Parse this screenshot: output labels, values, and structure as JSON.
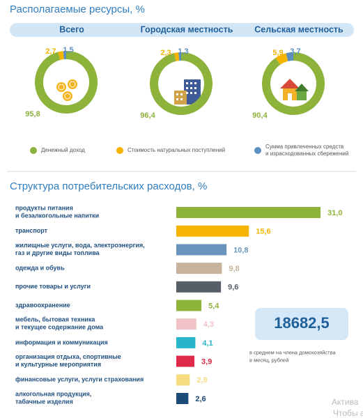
{
  "resources_section": {
    "title": "Располагаемые ресурсы, %",
    "legend": [
      {
        "label": "Денежный доход",
        "color": "#8db33a"
      },
      {
        "label": "Стоимость натуральных поступлений",
        "color": "#f5b400"
      },
      {
        "label": "Сумма привлеченных средств\nи израсходованных сбережений",
        "color": "#5b8fc0"
      }
    ]
  },
  "chart_data": [
    {
      "type": "pie",
      "title": "Всего",
      "values": [
        95.8,
        2.7,
        1.5
      ],
      "value_labels": [
        "95,8",
        "2,7",
        "1,5"
      ],
      "colors": [
        "#8db33a",
        "#f5b400",
        "#5b8fc0"
      ]
    },
    {
      "type": "pie",
      "title": "Городская местность",
      "values": [
        96.4,
        2.3,
        1.3
      ],
      "value_labels": [
        "96,4",
        "2,3",
        "1,3"
      ],
      "colors": [
        "#8db33a",
        "#f5b400",
        "#5b8fc0"
      ]
    },
    {
      "type": "pie",
      "title": "Сельская местность",
      "values": [
        90.4,
        5.9,
        3.7
      ],
      "value_labels": [
        "90,4",
        "5,9",
        "3,7"
      ],
      "colors": [
        "#8db33a",
        "#f5b400",
        "#5b8fc0"
      ]
    },
    {
      "type": "bar",
      "orientation": "horizontal",
      "title": "Структура потребительских расходов, %",
      "categories": [
        "продукты питания\nи безалкогольные напитки",
        "транспорт",
        "жилищные услуги, вода, электроэнергия,\nгаз и другие виды топлива",
        "одежда и обувь",
        "прочие товары и услуги",
        "здравоохранение",
        "мебель,  бытовая техника\nи текущее содержание дома",
        "информация и коммуникация",
        "организация отдыха, спортивные\nи культурные мероприятия",
        "финансовые услуги,  услуги  страхования",
        "алкогольная продукция,\nтабачные изделия"
      ],
      "values": [
        31.0,
        15.6,
        10.8,
        9.8,
        9.6,
        5.4,
        4.3,
        4.1,
        3.9,
        2.9,
        2.6
      ],
      "value_labels": [
        "31,0",
        "15,6",
        "10,8",
        "9,8",
        "9,6",
        "5,4",
        "4,3",
        "4,1",
        "3,9",
        "2,9",
        "2,6"
      ],
      "colors": [
        "#8db33a",
        "#f5b400",
        "#6a93bd",
        "#c8b49c",
        "#585e68",
        "#8db33a",
        "#efc2c6",
        "#26b5c9",
        "#de2a48",
        "#f5dc80",
        "#1c4a78"
      ]
    }
  ],
  "summary": {
    "value": "18682,5",
    "caption": "в среднем на члена домохозяйства\nв месяц, рублей"
  },
  "watermark": [
    "Актива",
    "Чтобы а"
  ]
}
